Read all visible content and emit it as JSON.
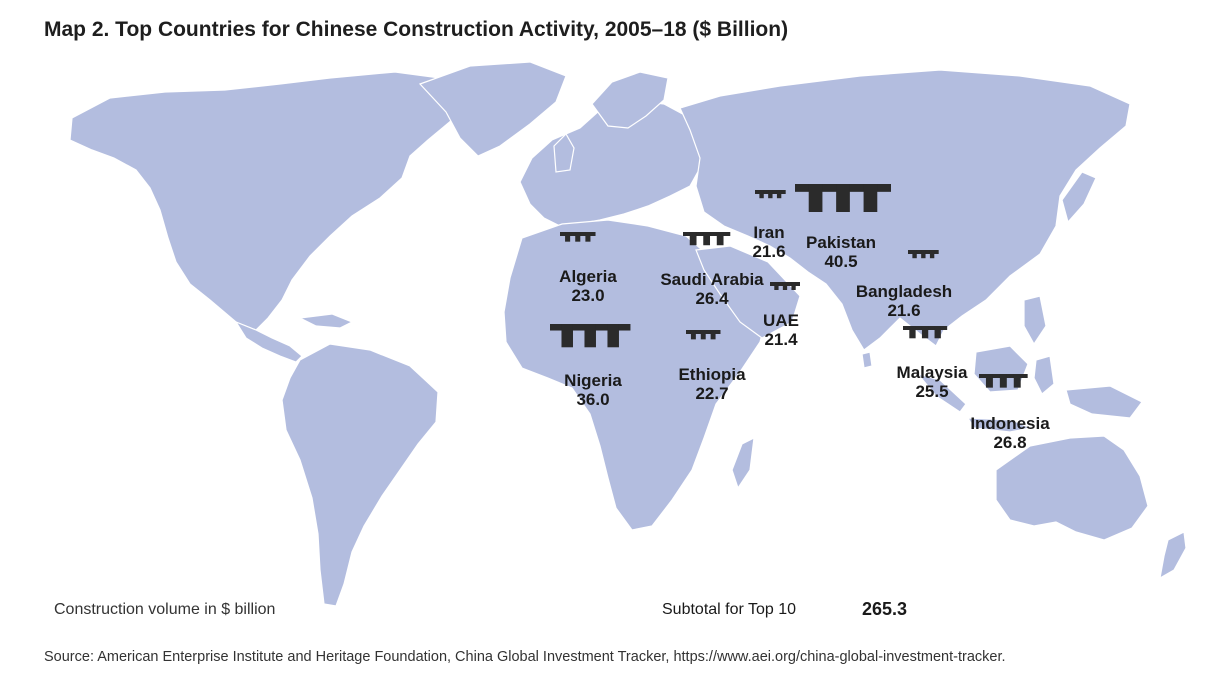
{
  "title": "Map 2. Top Countries for Chinese Construction Activity, 2005–18 ($ Billion)",
  "legend_label": "Construction volume in $ billion",
  "subtotal": {
    "label": "Subtotal for Top 10",
    "value": "265.3"
  },
  "source": "Source: American Enterprise Institute and Heritage Foundation, China Global Investment Tracker, https://www.aei.org/china-global-investment-tracker.",
  "colors": {
    "land": "#b3bddf",
    "ocean": "#ffffff",
    "icon": "#2b2b2b"
  },
  "countries": [
    {
      "name": "Iran",
      "value": "21.6"
    },
    {
      "name": "Pakistan",
      "value": "40.5"
    },
    {
      "name": "Algeria",
      "value": "23.0"
    },
    {
      "name": "Saudi Arabia",
      "value": "26.4"
    },
    {
      "name": "Bangladesh",
      "value": "21.6"
    },
    {
      "name": "UAE",
      "value": "21.4"
    },
    {
      "name": "Nigeria",
      "value": "36.0"
    },
    {
      "name": "Ethiopia",
      "value": "22.7"
    },
    {
      "name": "Malaysia",
      "value": "25.5"
    },
    {
      "name": "Indonesia",
      "value": "26.8"
    }
  ]
}
